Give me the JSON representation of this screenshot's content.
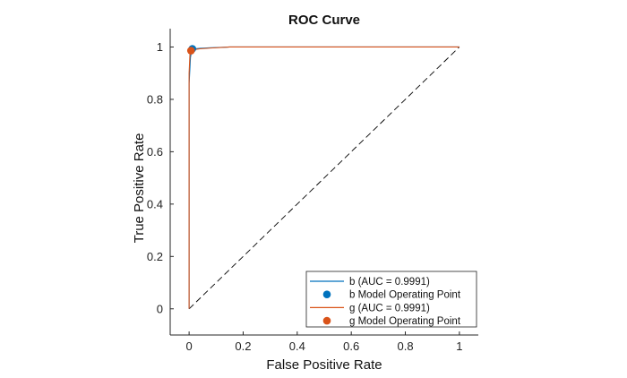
{
  "chart_data": {
    "type": "line",
    "title": "ROC Curve",
    "xlabel": "False Positive Rate",
    "ylabel": "True Positive Rate",
    "xlim": [
      -0.07,
      1.07
    ],
    "ylim": [
      -0.1,
      1.07
    ],
    "xticks": [
      0,
      0.2,
      0.4,
      0.6,
      0.8,
      1
    ],
    "xtick_labels": [
      "0",
      "0.2",
      "0.4",
      "0.6",
      "0.8",
      "1"
    ],
    "yticks": [
      0,
      0.2,
      0.4,
      0.6,
      0.8,
      1
    ],
    "ytick_labels": [
      "0",
      "0.2",
      "0.4",
      "0.6",
      "0.8",
      "1"
    ],
    "grid": false,
    "legend_position": "bottom-right",
    "series": [
      {
        "name": "b (AUC = 0.9991)",
        "color": "#0072BD",
        "x": [
          0,
          0,
          0.005,
          0.01,
          0.02,
          0.04,
          0.08,
          0.15,
          0.3,
          1
        ],
        "y": [
          0,
          0.86,
          0.96,
          0.99,
          0.993,
          0.995,
          0.997,
          1,
          1,
          1
        ]
      },
      {
        "name": "g (AUC = 0.9991)",
        "color": "#D95319",
        "x": [
          0,
          0,
          0.003,
          0.006,
          0.01,
          0.02,
          0.04,
          0.08,
          0.15,
          0.3,
          1
        ],
        "y": [
          0,
          0.9,
          0.97,
          0.985,
          0.986,
          0.99,
          0.993,
          0.996,
          1,
          1,
          1
        ]
      }
    ],
    "operating_points": [
      {
        "name": "b Model Operating Point",
        "x": 0.012,
        "y": 0.993,
        "color": "#0072BD"
      },
      {
        "name": "g Model Operating Point",
        "x": 0.007,
        "y": 0.986,
        "color": "#D95319"
      }
    ],
    "reference_line": {
      "x": [
        0,
        1
      ],
      "y": [
        0,
        1
      ],
      "style": "dashed",
      "color": "#000000"
    }
  }
}
